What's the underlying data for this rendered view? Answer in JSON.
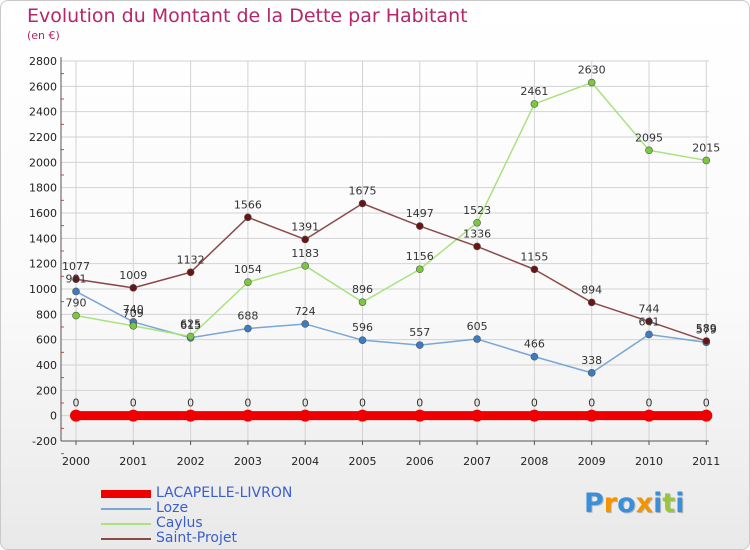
{
  "chart_data": {
    "type": "line",
    "title": "Evolution du Montant de la Dette par Habitant",
    "subtitle": "(en €)",
    "xlabel": "",
    "ylabel": "",
    "x": [
      "2000",
      "2001",
      "2002",
      "2003",
      "2004",
      "2005",
      "2006",
      "2007",
      "2008",
      "2009",
      "2010",
      "2011"
    ],
    "ylim": [
      -200,
      2800
    ],
    "yticks": [
      -200,
      0,
      200,
      400,
      600,
      800,
      1000,
      1200,
      1400,
      1600,
      1800,
      2000,
      2200,
      2400,
      2600,
      2800
    ],
    "grid": true,
    "legend_position": "bottom-left",
    "series": [
      {
        "name": "LACAPELLE-LIVRON",
        "color": "#ee0000",
        "point_color": "#ee0000",
        "width": 9,
        "marker_r": 6,
        "values": [
          0,
          0,
          0,
          0,
          0,
          0,
          0,
          0,
          0,
          0,
          0,
          0
        ]
      },
      {
        "name": "Loze",
        "color": "#79a7d6",
        "point_color": "#3b7cc4",
        "width": 1.5,
        "marker_r": 3.5,
        "values": [
          981,
          740,
          615,
          688,
          724,
          596,
          557,
          605,
          466,
          338,
          641,
          579
        ]
      },
      {
        "name": "Caylus",
        "color": "#a9e27f",
        "point_color": "#79c83d",
        "width": 1.5,
        "marker_r": 3.5,
        "values": [
          790,
          709,
          625,
          1054,
          1183,
          896,
          1156,
          1523,
          2461,
          2630,
          2095,
          2015
        ]
      },
      {
        "name": "Saint-Projet",
        "color": "#8a4a4a",
        "point_color": "#6b1414",
        "width": 1.5,
        "marker_r": 3.5,
        "values": [
          1077,
          1009,
          1132,
          1566,
          1391,
          1675,
          1497,
          1336,
          1155,
          894,
          744,
          589
        ]
      }
    ],
    "data_labels": [
      {
        "series": "LACAPELLE-LIVRON",
        "texts": [
          "0",
          "0",
          "0",
          "0",
          "0",
          "0",
          "0",
          "0",
          "0",
          "0",
          "0",
          "0"
        ]
      },
      {
        "series": "Loze",
        "texts": [
          "981",
          "740",
          "615",
          "688",
          "724",
          "596",
          "557",
          "605",
          "466",
          "338",
          "641",
          "579"
        ]
      },
      {
        "series": "Caylus",
        "texts": [
          "790",
          "709",
          "625",
          "1054",
          "1183",
          "896",
          "1156",
          "1523",
          "2461",
          "2630",
          "2095",
          "2015"
        ]
      },
      {
        "series": "Saint-Projet",
        "texts": [
          "1077",
          "1009",
          "1132",
          "1566",
          "1391",
          "1675",
          "1497",
          "1336",
          "1155",
          "894",
          "744",
          "589"
        ]
      }
    ]
  },
  "logo": {
    "letters": [
      "P",
      "r",
      "o",
      "x",
      "i",
      "t",
      "i"
    ],
    "colors": [
      "#3a8fd6",
      "#f29400",
      "#3a8fd6",
      "#f29400",
      "#3a8fd6",
      "#9ac63c",
      "#3a8fd6"
    ]
  }
}
